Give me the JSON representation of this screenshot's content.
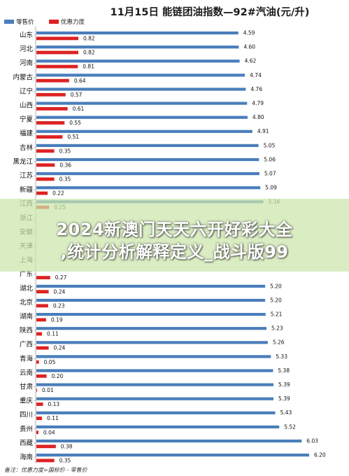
{
  "chart_data": {
    "type": "bar",
    "title": "11月15日  能链团油指数—92#汽油(元/升)",
    "legend": [
      {
        "name": "零售价",
        "color": "#4a7ebb"
      },
      {
        "name": "优惠力度",
        "color": "#dd2222"
      }
    ],
    "categories": [
      "山东",
      "河北",
      "河南",
      "内蒙古",
      "辽宁",
      "山西",
      "宁夏",
      "福建",
      "吉林",
      "黑龙江",
      "江苏",
      "新疆",
      "江西",
      "浙江",
      "安徽",
      "天津",
      "上海",
      "广东",
      "湖北",
      "北京",
      "湖南",
      "陕西",
      "广西",
      "青海",
      "云南",
      "甘肃",
      "重庆",
      "四川",
      "贵州",
      "西藏",
      "海南"
    ],
    "series": [
      {
        "name": "零售价",
        "values": [
          4.59,
          4.6,
          4.62,
          4.74,
          4.76,
          4.79,
          4.8,
          4.91,
          5.05,
          5.06,
          5.07,
          5.09,
          5.16,
          null,
          null,
          null,
          null,
          null,
          5.2,
          5.2,
          5.21,
          5.23,
          5.26,
          5.33,
          5.38,
          5.39,
          5.39,
          5.43,
          5.52,
          6.03,
          6.2
        ]
      },
      {
        "name": "优惠力度",
        "values": [
          0.82,
          0.82,
          0.81,
          0.64,
          0.57,
          0.61,
          0.55,
          0.51,
          0.35,
          0.36,
          0.35,
          0.22,
          0.25,
          null,
          null,
          null,
          null,
          0.27,
          0.24,
          0.23,
          0.19,
          0.11,
          0.24,
          0.05,
          0.2,
          0.01,
          0.13,
          0.11,
          0.04,
          0.38,
          0.35
        ]
      }
    ],
    "value_labels": {
      "retail": [
        "4.59",
        "4.60",
        "4.62",
        "4.74",
        "4.76",
        "4.79",
        "4.80",
        "4.91",
        "5.05",
        "5.06",
        "5.07",
        "5.09",
        "5.16",
        "",
        "",
        "",
        "",
        "",
        "5.20",
        "5.20",
        "5.21",
        "5.23",
        "5.26",
        "5.33",
        "5.38",
        "5.39",
        "5.39",
        "5.43",
        "5.52",
        "6.03",
        "6.20"
      ],
      "discount": [
        "0.82",
        "0.82",
        "0.81",
        "0.64",
        "0.57",
        "0.61",
        "0.55",
        "0.51",
        "0.35",
        "0.36",
        "0.35",
        "0.22",
        "0.25",
        "",
        "",
        "",
        "",
        "0.27",
        "0.24",
        "0.23",
        "0.19",
        "0.11",
        "0.24",
        "0.05",
        "0.20",
        "0.01",
        "0.13",
        "0.11",
        "0.04",
        "0.38",
        "0.35"
      ]
    },
    "note": "备注：优惠力度=国标价 - 零售价",
    "grid": false,
    "legend_position": "top-left"
  },
  "overlay": {
    "line1": "2024新澳门天天六开好彩大全",
    "line2": ",统计分析解释定义_战斗版99"
  }
}
